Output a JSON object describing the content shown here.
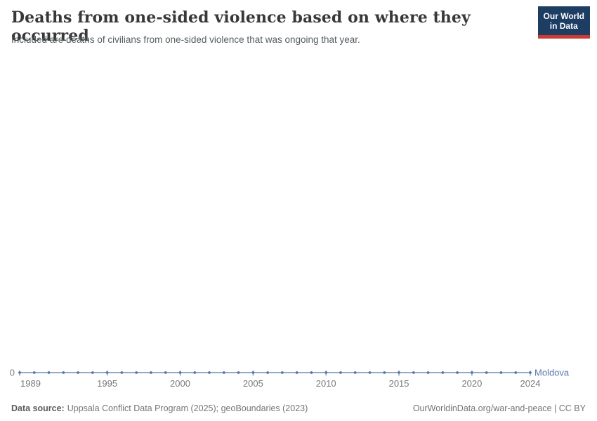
{
  "header": {
    "title": "Deaths from one-sided violence based on where they occurred",
    "subtitle": "Included are deaths of civilians from one-sided violence that was ongoing that year.",
    "logo": {
      "line1": "Our World",
      "line2": "in Data",
      "bg_color": "#1d3d63",
      "accent_color": "#cc3b34"
    }
  },
  "chart_data": {
    "type": "line",
    "title": "Deaths from one-sided violence based on where they occurred",
    "subtitle": "Included are deaths of civilians from one-sided violence that was ongoing that year.",
    "x": [
      1989,
      1990,
      1991,
      1992,
      1993,
      1994,
      1995,
      1996,
      1997,
      1998,
      1999,
      2000,
      2001,
      2002,
      2003,
      2004,
      2005,
      2006,
      2007,
      2008,
      2009,
      2010,
      2011,
      2012,
      2013,
      2014,
      2015,
      2016,
      2017,
      2018,
      2019,
      2020,
      2021,
      2022,
      2023,
      2024
    ],
    "series": [
      {
        "name": "Moldova",
        "color": "#5878a9",
        "values": [
          0,
          0,
          0,
          0,
          0,
          0,
          0,
          0,
          0,
          0,
          0,
          0,
          0,
          0,
          0,
          0,
          0,
          0,
          0,
          0,
          0,
          0,
          0,
          0,
          0,
          0,
          0,
          0,
          0,
          0,
          0,
          0,
          0,
          0,
          0,
          0
        ]
      }
    ],
    "x_ticks": [
      1989,
      1995,
      2000,
      2005,
      2010,
      2015,
      2020,
      2024
    ],
    "y_ticks": [
      0
    ],
    "ylim": [
      0,
      1
    ],
    "grid": false,
    "legend_position": "right-of-line",
    "entity_label": "Moldova",
    "axis_label_color": "#787878"
  },
  "footer": {
    "source_label": "Data source:",
    "source_text": "Uppsala Conflict Data Program (2025); geoBoundaries (2023)",
    "right_text": "OurWorldinData.org/war-and-peace | CC BY"
  }
}
